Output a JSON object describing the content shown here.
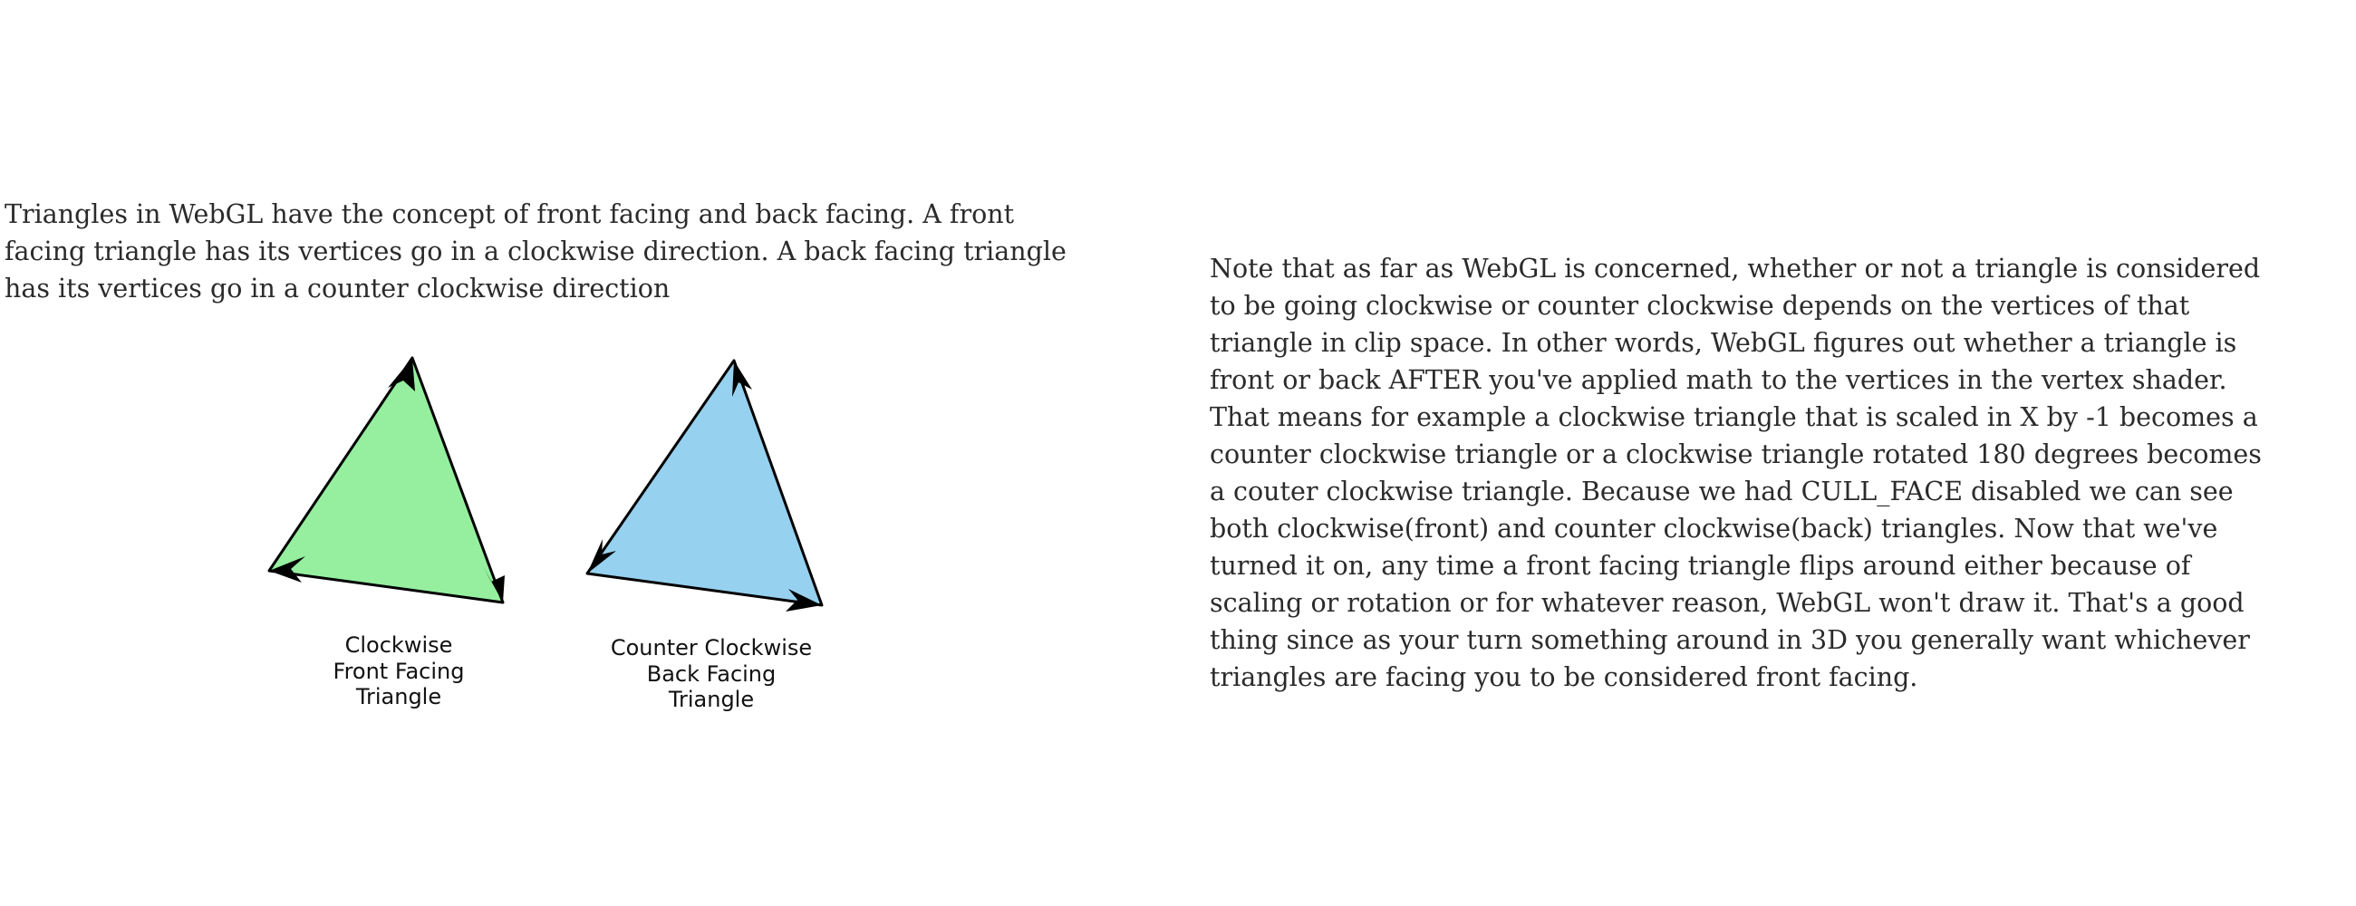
{
  "intro_text": "Triangles in WebGL have the concept of front facing and back facing. A front facing triangle has its vertices go in a clockwise direction. A back facing triangle has its vertices go in a counter clockwise direction",
  "note_text": "Note that as far as WebGL is concerned, whether or not a triangle is considered to be going clockwise or counter clockwise depends on the vertices of that triangle in clip space. In other words, WebGL figures out whether a triangle is front or back AFTER you've applied math to the vertices in the vertex shader. That means for example a clockwise triangle that is scaled in X by -1 becomes a counter clockwise triangle or a clockwise triangle rotated 180 degrees becomes a couter clockwise triangle. Because we had CULL_FACE disabled we can see both clockwise(front) and counter clockwise(back) triangles. Now that we've turned it on, any time a front facing triangle flips around either because of scaling or rotation or for whatever reason, WebGL won't draw it. That's a good thing since as your turn something around in 3D you generally want whichever triangles are facing you to be considered front facing.",
  "diagram": {
    "clockwise": {
      "caption": [
        "Clockwise",
        "Front Facing",
        "Triangle"
      ],
      "fill": "#95ef9f"
    },
    "counter_clockwise": {
      "caption": [
        "Counter Clockwise",
        "Back Facing",
        "Triangle"
      ],
      "fill": "#96d1ef"
    },
    "stroke": "#000000"
  }
}
